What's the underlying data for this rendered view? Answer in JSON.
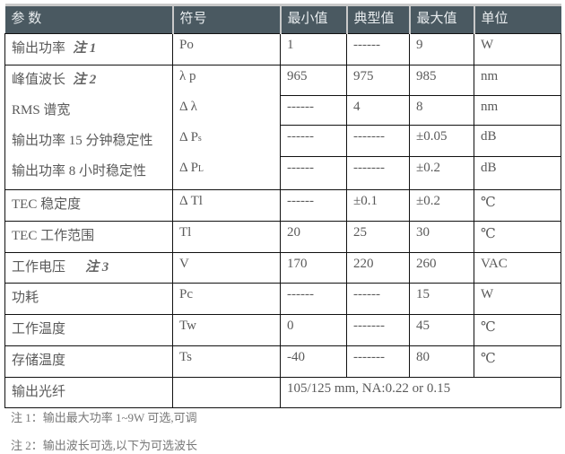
{
  "headers": [
    "参 数",
    "符号",
    "最小值",
    "典型值",
    "最大值",
    "单位"
  ],
  "rows": {
    "r1": {
      "param": "输出功率",
      "note": "注 1",
      "symbol": "Po",
      "min": "1",
      "typ": "------",
      "max": "9",
      "unit": "W"
    },
    "r2": {
      "param": "峰值波长",
      "note": "注 2",
      "symbol": "λ p",
      "min": "965",
      "typ": "975",
      "max": "985",
      "unit": "nm"
    },
    "r3": {
      "param": "RMS 谱宽",
      "symbol": "Δ λ",
      "min": "------",
      "typ": "4",
      "max": "8",
      "unit": "nm"
    },
    "r4": {
      "param": "输出功率 15 分钟稳定性",
      "symbol": "Δ P",
      "symbol_sub": "s",
      "min": "------",
      "typ": "-------",
      "max": "±0.05",
      "unit": "dB"
    },
    "r5": {
      "param": "输出功率 8 小时稳定性",
      "symbol": "Δ P",
      "symbol_sub": "L",
      "min": "------",
      "typ": "-------",
      "max": "±0.2",
      "unit": "dB"
    },
    "r6": {
      "param": "TEC 稳定度",
      "symbol": "Δ Tl",
      "min": "------",
      "typ": "±0.1",
      "max": "±0.2",
      "unit": "℃"
    },
    "r7": {
      "param": "TEC 工作范围",
      "symbol": "Tl",
      "min": "20",
      "typ": "25",
      "max": "30",
      "unit": "℃"
    },
    "r8": {
      "param": "工作电压",
      "note": "注 3",
      "symbol": "V",
      "min": "170",
      "typ": "220",
      "max": "260",
      "unit": "VAC"
    },
    "r9": {
      "param": "功耗",
      "symbol": "Pc",
      "min": "------",
      "typ": "------",
      "max": "15",
      "unit": "W"
    },
    "r10": {
      "param": "工作温度",
      "symbol": "Tw",
      "min": "0",
      "typ": "-------",
      "max": "45",
      "unit": "℃"
    },
    "r11": {
      "param": "存储温度",
      "symbol": "Ts",
      "min": "-40",
      "typ": "-------",
      "max": "80",
      "unit": "℃"
    },
    "r12": {
      "param": "输出光纤",
      "symbol": "",
      "value": "105/125 mm,  NA:0.22 or 0.15"
    }
  },
  "footnotes": [
    "注 1：输出最大功率 1~9W 可选,可调",
    "注 2：输出波长可选,以下为可选波长"
  ],
  "colors": {
    "header_bg": "#4a5961",
    "header_text": "#e8ecee",
    "border": "#111111"
  }
}
